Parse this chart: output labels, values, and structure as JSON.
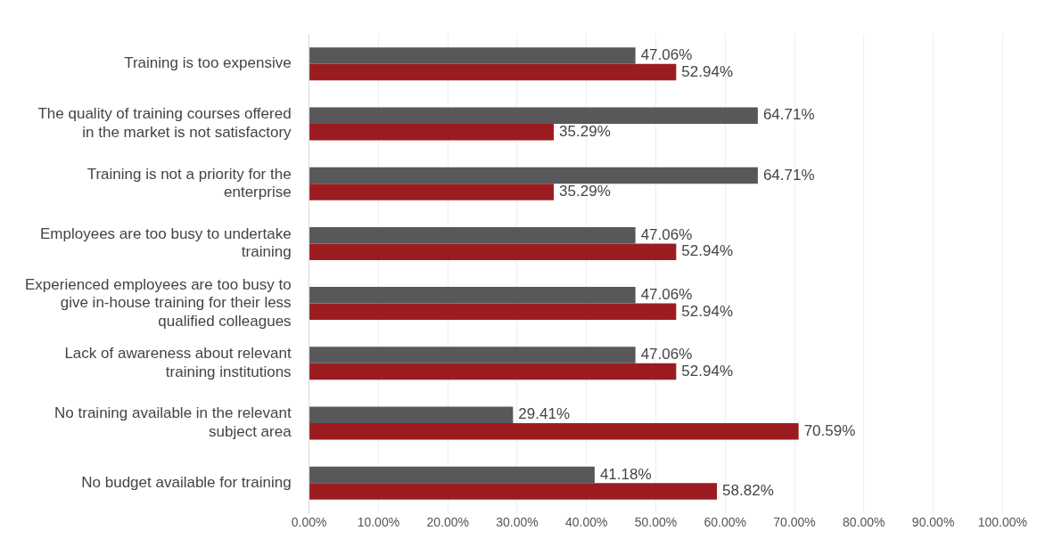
{
  "chart_data": {
    "type": "bar",
    "orientation": "horizontal",
    "categories": [
      "Training is too expensive",
      "The quality of training courses offered in the market is not satisfactory",
      "Training is not a priority for the enterprise",
      "Employees are too busy to undertake training",
      "Experienced employees are too busy to give in-house training for their less qualified colleagues",
      "Lack of awareness about relevant training institutions",
      "No training available in the relevant subject area",
      "No budget available for training"
    ],
    "series": [
      {
        "color": "#58585a",
        "values": [
          47.06,
          64.71,
          64.71,
          47.06,
          47.06,
          47.06,
          29.41,
          41.18
        ],
        "value_labels": [
          "47.06%",
          "64.71%",
          "64.71%",
          "47.06%",
          "47.06%",
          "47.06%",
          "29.41%",
          "41.18%"
        ]
      },
      {
        "color": "#9b1c20",
        "values": [
          52.94,
          35.29,
          35.29,
          52.94,
          52.94,
          52.94,
          70.59,
          58.82
        ],
        "value_labels": [
          "52.94%",
          "35.29%",
          "35.29%",
          "52.94%",
          "52.94%",
          "52.94%",
          "70.59%",
          "58.82%"
        ]
      }
    ],
    "xlim": [
      0,
      100
    ],
    "xticks": [
      {
        "value": 0,
        "label": "0.00%"
      },
      {
        "value": 10,
        "label": "10.00%"
      },
      {
        "value": 20,
        "label": "20.00%"
      },
      {
        "value": 30,
        "label": "30.00%"
      },
      {
        "value": 40,
        "label": "40.00%"
      },
      {
        "value": 50,
        "label": "50.00%"
      },
      {
        "value": 60,
        "label": "60.00%"
      },
      {
        "value": 70,
        "label": "70.00%"
      },
      {
        "value": 80,
        "label": "80.00%"
      },
      {
        "value": 90,
        "label": "90.00%"
      },
      {
        "value": 100,
        "label": "100.00%"
      }
    ],
    "grid": "x",
    "legend": false
  }
}
